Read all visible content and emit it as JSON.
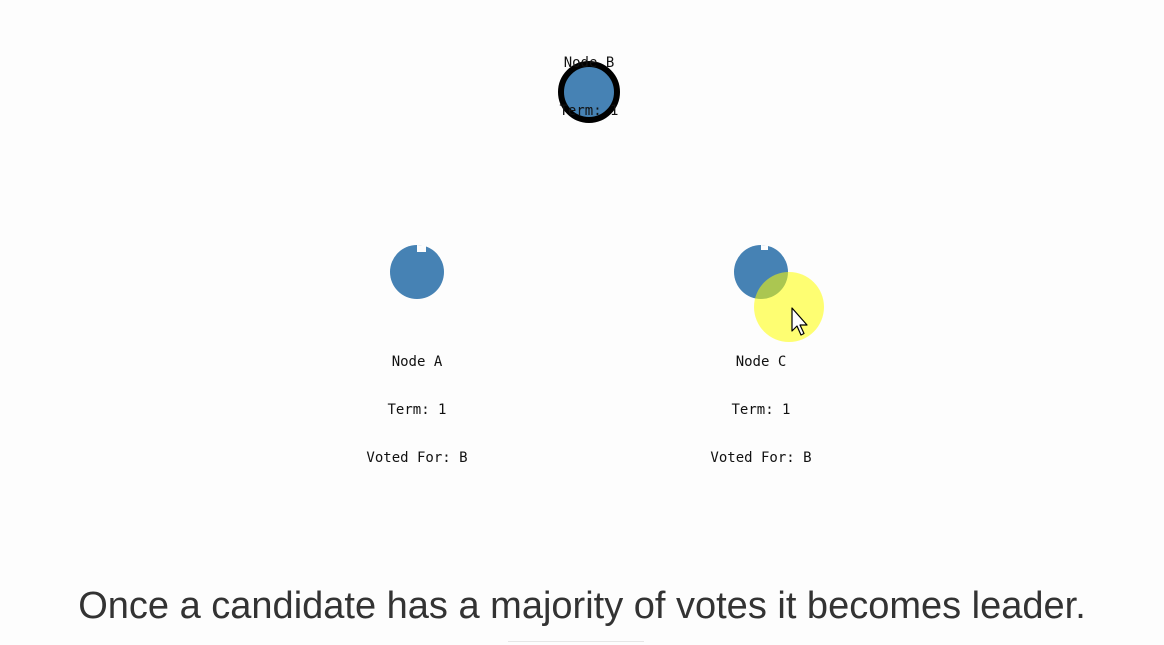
{
  "colors": {
    "node_fill": "#4682b4",
    "leader_stroke": "#000000",
    "text": "#111111",
    "caption": "#333333",
    "background": "#fdfdfd",
    "click_highlight": "#ffff00"
  },
  "nodes": {
    "b": {
      "name": "Node B",
      "term": "Term: 1",
      "role": "leader"
    },
    "a": {
      "name": "Node A",
      "term": "Term: 1",
      "voted_for": "Voted For: B",
      "role": "follower"
    },
    "c": {
      "name": "Node C",
      "term": "Term: 1",
      "voted_for": "Voted For: B",
      "role": "follower"
    }
  },
  "caption": "Once a candidate has a majority of votes it becomes leader.",
  "cursor": {
    "icon": "arrow-cursor-icon",
    "highlight": "click-highlight"
  }
}
